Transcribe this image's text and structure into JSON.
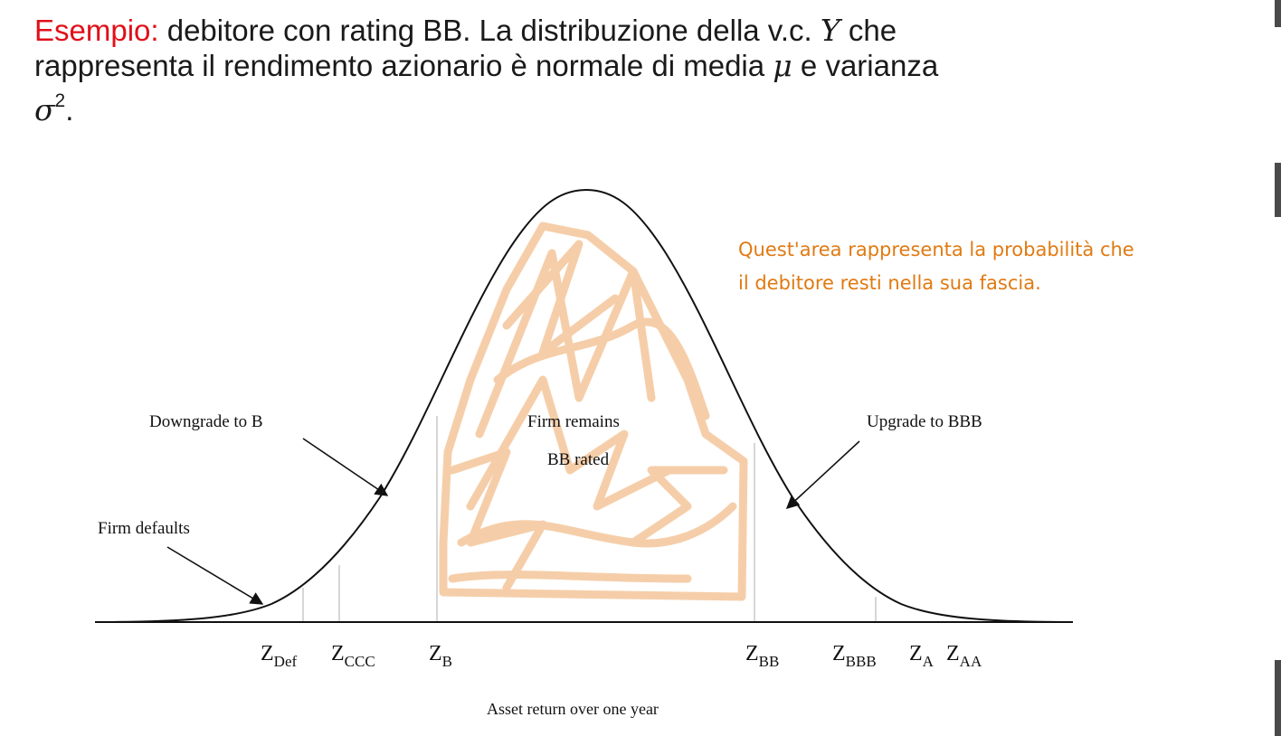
{
  "intro": {
    "keyword": "Esempio:",
    "line1_rest": " debitore con rating BB. La distribuzione della v.c. ",
    "var_y": "Y",
    "line1_end": " che",
    "line2_start": "rappresenta il rendimento azionario è normale di media ",
    "mu": "μ",
    "line2_end": " e varianza",
    "sigma": "σ",
    "sigma_exp": "2",
    "period": "."
  },
  "diagram": {
    "labels": {
      "downgrade": "Downgrade to B",
      "remains_line1": "Firm remains",
      "remains_line2": "BB rated",
      "upgrade": "Upgrade to BBB",
      "defaults": "Firm defaults",
      "x_axis": "Asset return over one year"
    },
    "thresholds": [
      {
        "main": "Z",
        "sub": "Def"
      },
      {
        "main": "Z",
        "sub": "CCC"
      },
      {
        "main": "Z",
        "sub": "B"
      },
      {
        "main": "Z",
        "sub": "BB"
      },
      {
        "main": "Z",
        "sub": "BBB"
      },
      {
        "main": "Z",
        "sub": "A"
      },
      {
        "main": "Z",
        "sub": "AA"
      }
    ]
  },
  "annotation": {
    "line1": "Quest'area rappresenta la probabilità che",
    "line2": "il debitore resti nella sua fascia.",
    "color": "#e07a12",
    "highlight_color": "#f5c9a0"
  }
}
